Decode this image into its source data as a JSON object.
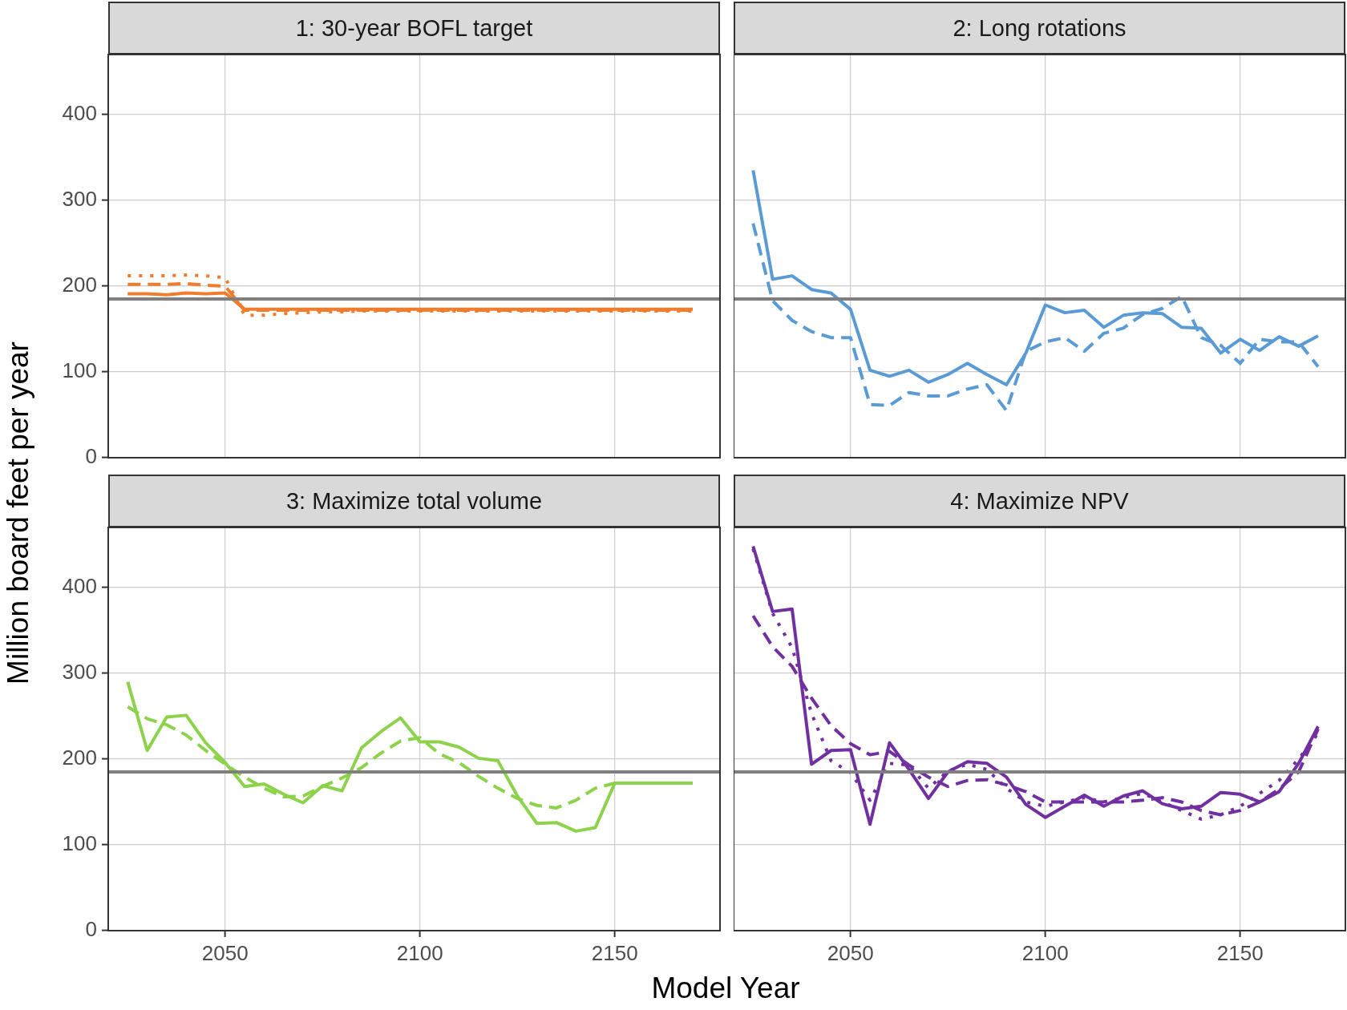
{
  "chart_data": [
    {
      "type": "line",
      "title": "1: 30-year BOFL target",
      "ylabel": "Million board feet per year",
      "x": [
        2025,
        2030,
        2035,
        2040,
        2045,
        2050,
        2055,
        2060,
        2065,
        2070,
        2075,
        2080,
        2085,
        2090,
        2095,
        2100,
        2105,
        2110,
        2115,
        2120,
        2125,
        2130,
        2135,
        2140,
        2145,
        2150,
        2155,
        2160,
        2165,
        2170
      ],
      "series": [
        {
          "color": "#ef7d2d",
          "line_style": "solid",
          "values": [
            191,
            191,
            190,
            192,
            191,
            192,
            173,
            173,
            173,
            173,
            173,
            173,
            173,
            173,
            173,
            173,
            173,
            173,
            173,
            173,
            173,
            173,
            173,
            173,
            173,
            173,
            173,
            173,
            173,
            173
          ]
        },
        {
          "color": "#ef7d2d",
          "line_style": "dashed",
          "values": [
            202,
            202,
            202,
            203,
            201,
            200,
            172,
            172,
            172,
            172,
            172,
            172,
            172,
            172,
            172,
            172,
            172,
            172,
            172,
            172,
            172,
            172,
            172,
            172,
            172,
            172,
            172,
            172,
            172,
            172
          ]
        },
        {
          "color": "#ef7d2d",
          "line_style": "dotted",
          "values": [
            212,
            212,
            212,
            213,
            212,
            210,
            166,
            166,
            168,
            169,
            170,
            170,
            171,
            171,
            171,
            171,
            171,
            171,
            171,
            171,
            171,
            171,
            171,
            171,
            171,
            171,
            171,
            171,
            171,
            171
          ]
        }
      ],
      "xlim": [
        2020,
        2177
      ],
      "xticks": [
        2050,
        2100,
        2150
      ],
      "ylim": [
        0,
        470
      ],
      "yticks": [
        0,
        100,
        200,
        300,
        400
      ],
      "grid": true,
      "legend": false,
      "tick_labels": "y",
      "ref_lines": [
        {
          "axis": "y",
          "value": 185,
          "color": "#7f7f7f"
        }
      ]
    },
    {
      "type": "line",
      "title": "2: Long rotations",
      "x": [
        2025,
        2030,
        2035,
        2040,
        2045,
        2050,
        2055,
        2060,
        2065,
        2070,
        2075,
        2080,
        2085,
        2090,
        2095,
        2100,
        2105,
        2110,
        2115,
        2120,
        2125,
        2130,
        2135,
        2140,
        2145,
        2150,
        2155,
        2160,
        2165,
        2170
      ],
      "series": [
        {
          "color": "#5b9bd5",
          "line_style": "solid",
          "values": [
            335,
            208,
            212,
            196,
            192,
            173,
            102,
            95,
            102,
            88,
            97,
            110,
            97,
            85,
            122,
            178,
            169,
            172,
            152,
            166,
            169,
            168,
            152,
            151,
            122,
            138,
            125,
            141,
            130,
            142
          ]
        },
        {
          "color": "#5b9bd5",
          "line_style": "dashed",
          "values": [
            273,
            183,
            160,
            147,
            140,
            140,
            62,
            61,
            76,
            72,
            72,
            80,
            85,
            55,
            124,
            135,
            140,
            124,
            145,
            151,
            167,
            174,
            188,
            140,
            131,
            110,
            138,
            135,
            135,
            106
          ]
        }
      ],
      "xlim": [
        2020,
        2177
      ],
      "xticks": [
        2050,
        2100,
        2150
      ],
      "ylim": [
        0,
        470
      ],
      "yticks": [
        0,
        100,
        200,
        300,
        400
      ],
      "grid": true,
      "legend": false,
      "tick_labels": false,
      "ref_lines": [
        {
          "axis": "y",
          "value": 185,
          "color": "#7f7f7f"
        }
      ]
    },
    {
      "type": "line",
      "title": "3: Maximize total volume",
      "xlabel": "Model Year",
      "x": [
        2025,
        2030,
        2035,
        2040,
        2045,
        2050,
        2055,
        2060,
        2065,
        2070,
        2075,
        2080,
        2085,
        2090,
        2095,
        2100,
        2105,
        2110,
        2115,
        2120,
        2125,
        2130,
        2135,
        2140,
        2145,
        2150,
        2155,
        2160,
        2165,
        2170
      ],
      "series": [
        {
          "color": "#8cd24b",
          "line_style": "solid",
          "values": [
            290,
            210,
            249,
            251,
            219,
            196,
            168,
            171,
            159,
            149,
            169,
            163,
            213,
            232,
            248,
            220,
            220,
            214,
            201,
            198,
            157,
            125,
            126,
            116,
            120,
            172,
            172,
            172,
            172,
            172
          ]
        },
        {
          "color": "#8cd24b",
          "line_style": "dashed",
          "values": [
            261,
            247,
            240,
            228,
            210,
            194,
            179,
            166,
            156,
            157,
            168,
            178,
            190,
            207,
            221,
            225,
            206,
            196,
            180,
            166,
            154,
            146,
            143,
            152,
            166,
            172,
            172,
            172,
            172,
            172
          ]
        }
      ],
      "xlim": [
        2020,
        2177
      ],
      "xticks": [
        2050,
        2100,
        2150
      ],
      "ylim": [
        0,
        470
      ],
      "yticks": [
        0,
        100,
        200,
        300,
        400
      ],
      "grid": true,
      "legend": false,
      "ref_lines": [
        {
          "axis": "y",
          "value": 185,
          "color": "#7f7f7f"
        }
      ]
    },
    {
      "type": "line",
      "title": "4: Maximize NPV",
      "x": [
        2025,
        2030,
        2035,
        2040,
        2045,
        2050,
        2055,
        2060,
        2065,
        2070,
        2075,
        2080,
        2085,
        2090,
        2095,
        2100,
        2105,
        2110,
        2115,
        2120,
        2125,
        2130,
        2135,
        2140,
        2145,
        2150,
        2155,
        2160,
        2165,
        2170
      ],
      "series": [
        {
          "color": "#7030a0",
          "line_style": "solid",
          "values": [
            448,
            372,
            375,
            194,
            210,
            211,
            124,
            219,
            188,
            154,
            185,
            197,
            195,
            179,
            147,
            132,
            145,
            158,
            145,
            157,
            163,
            148,
            142,
            145,
            161,
            159,
            150,
            162,
            195,
            238
          ]
        },
        {
          "color": "#7030a0",
          "line_style": "dashed",
          "values": [
            367,
            331,
            308,
            271,
            239,
            218,
            205,
            209,
            193,
            179,
            168,
            175,
            176,
            170,
            162,
            150,
            150,
            150,
            150,
            150,
            152,
            155,
            150,
            140,
            135,
            140,
            150,
            165,
            185,
            235
          ]
        },
        {
          "color": "#7030a0",
          "line_style": "dotted",
          "values": [
            445,
            370,
            330,
            253,
            198,
            184,
            152,
            195,
            193,
            166,
            186,
            194,
            188,
            166,
            150,
            145,
            150,
            155,
            150,
            155,
            160,
            150,
            140,
            130,
            135,
            145,
            160,
            175,
            200,
            230
          ]
        }
      ],
      "xlim": [
        2020,
        2177
      ],
      "xticks": [
        2050,
        2100,
        2150
      ],
      "ylim": [
        0,
        470
      ],
      "yticks": [
        0,
        100,
        200,
        300,
        400
      ],
      "grid": true,
      "legend": false,
      "tick_labels": "x",
      "ref_lines": [
        {
          "axis": "y",
          "value": 185,
          "color": "#7f7f7f"
        }
      ]
    }
  ]
}
